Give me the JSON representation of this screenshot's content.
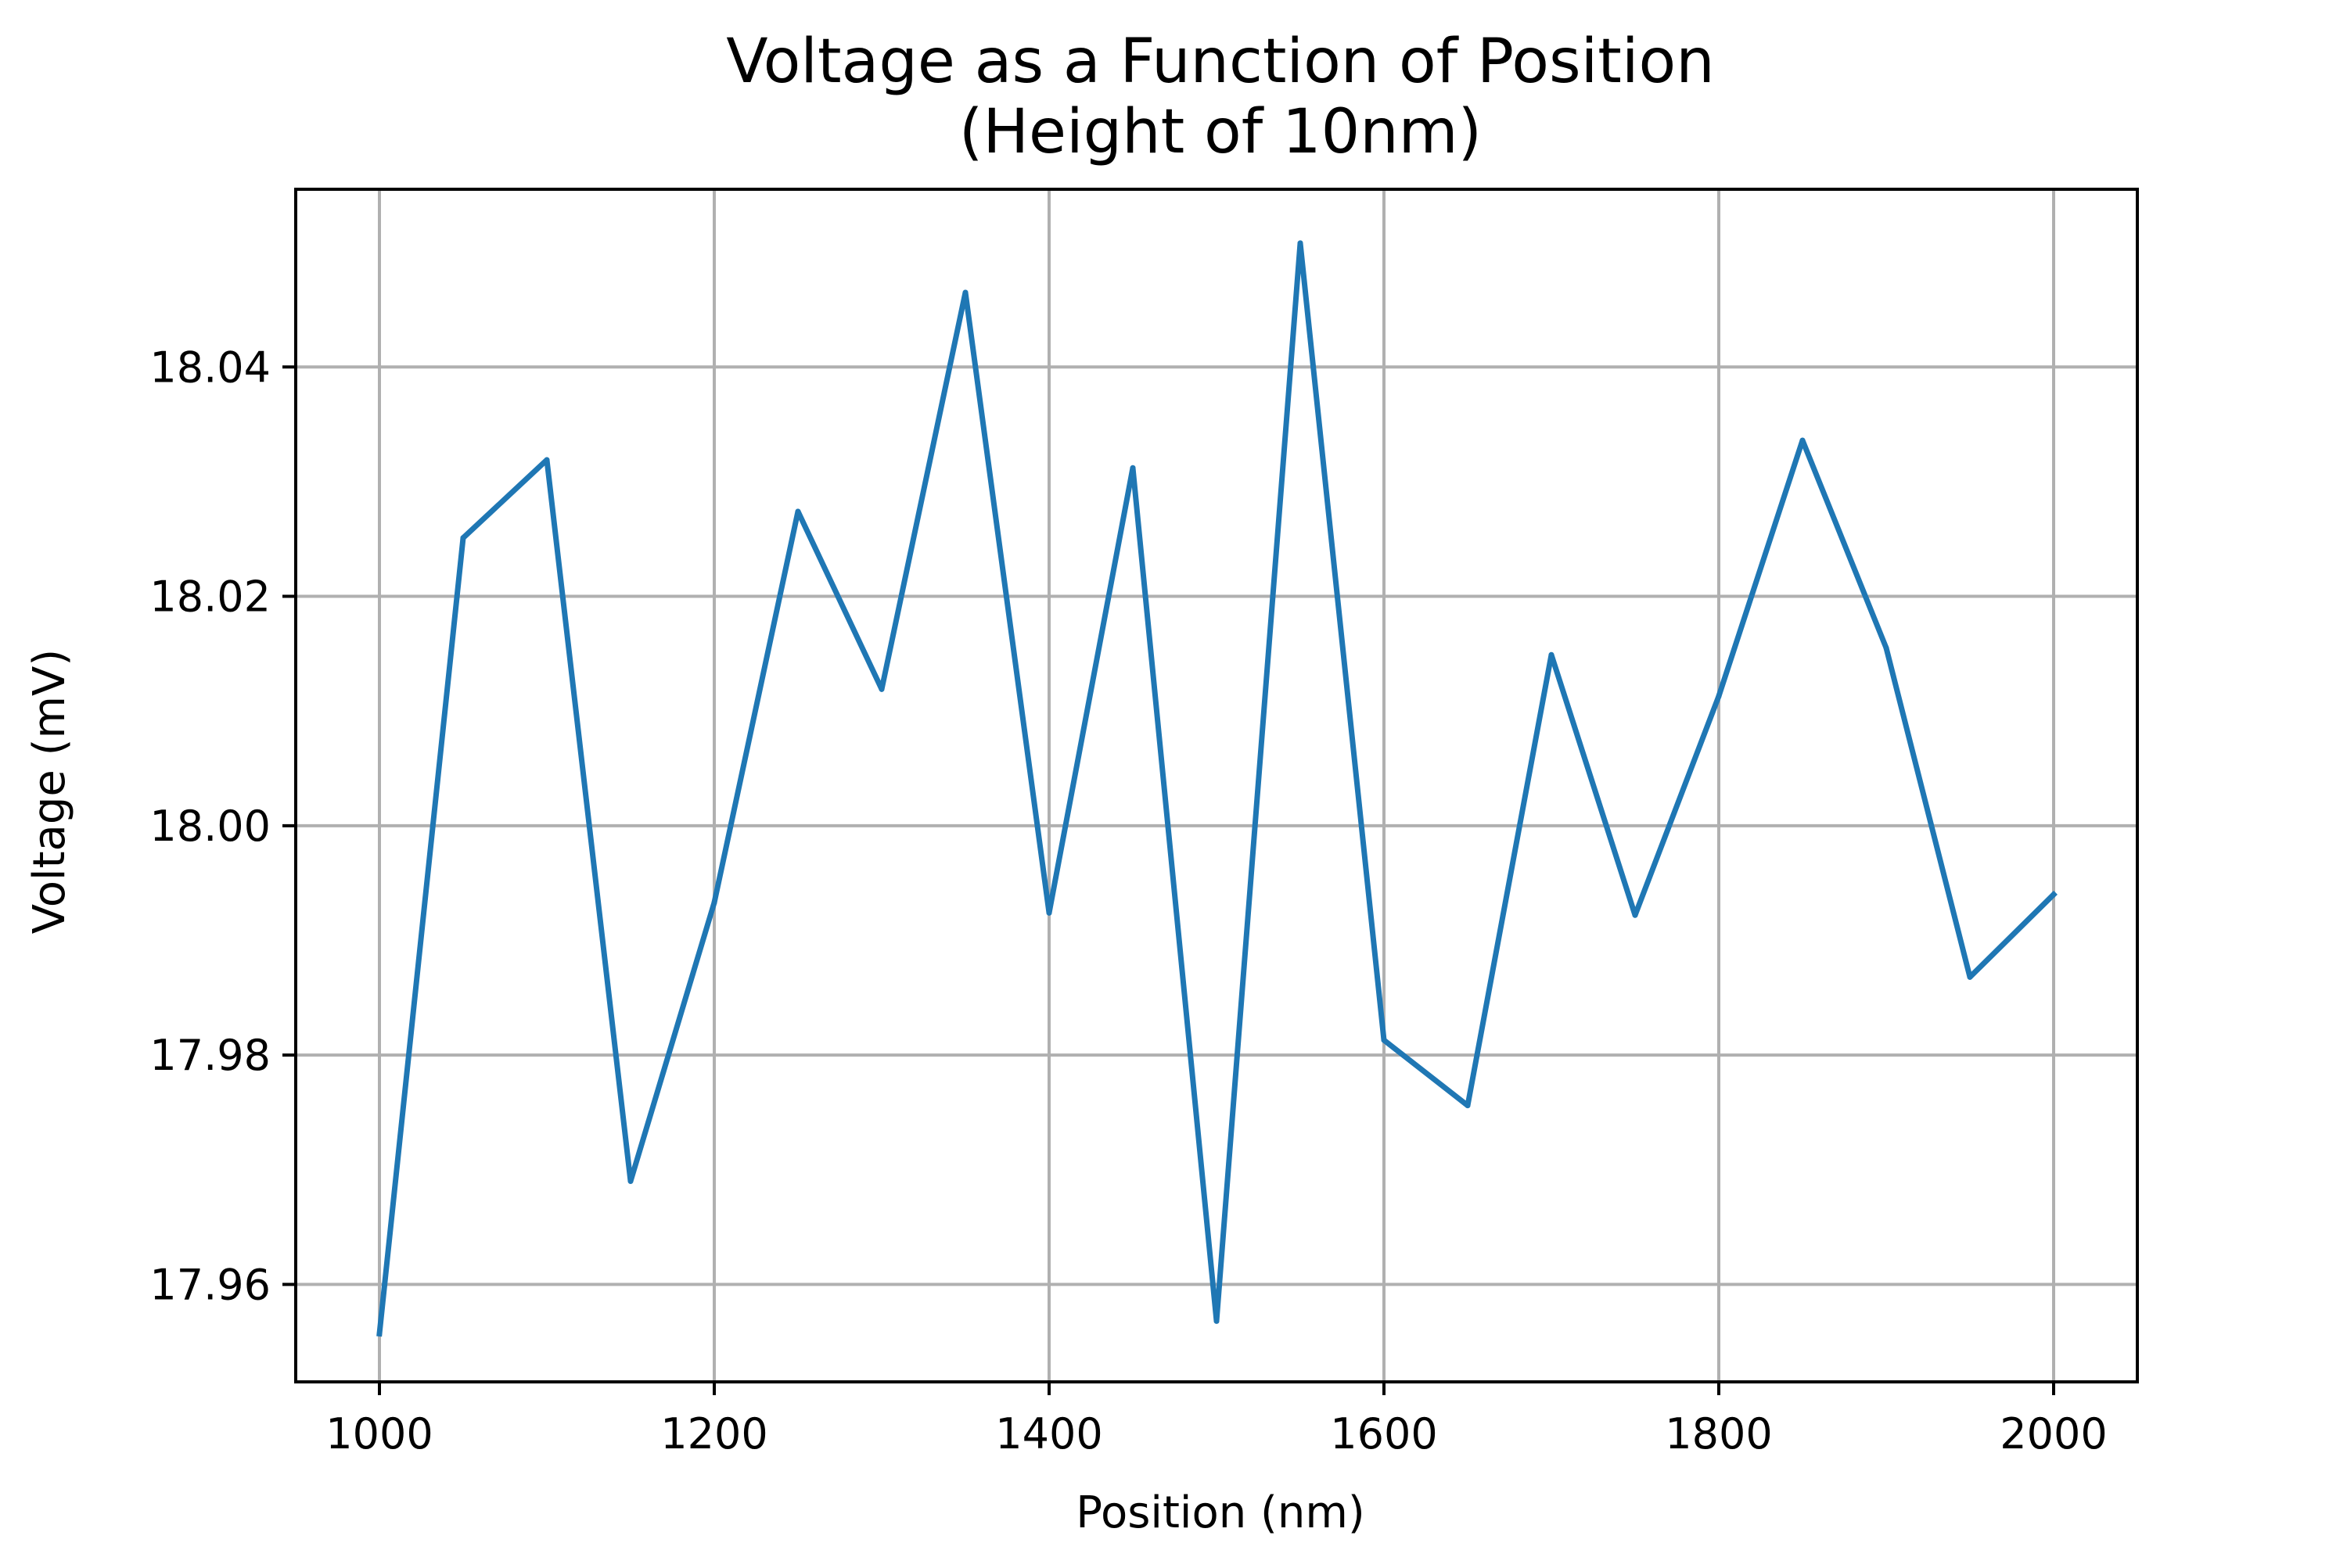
{
  "chart_data": {
    "type": "line",
    "title_line1": "Voltage as a Function of Position",
    "title_line2": "(Height of 10nm)",
    "xlabel": "Position (nm)",
    "ylabel": "Voltage (mV)",
    "xlim": [
      950,
      2050
    ],
    "ylim": [
      17.9515,
      18.0555
    ],
    "xticks": [
      1000,
      1200,
      1400,
      1600,
      1800,
      2000
    ],
    "yticks": [
      17.96,
      17.98,
      18.0,
      18.02,
      18.04
    ],
    "ytick_labels": [
      "17.96",
      "17.98",
      "18.00",
      "18.02",
      "18.04"
    ],
    "grid": true,
    "line_color": "#1f77b4",
    "x": [
      1000,
      1050,
      1100,
      1150,
      1200,
      1250,
      1300,
      1350,
      1400,
      1450,
      1500,
      1550,
      1600,
      1650,
      1700,
      1750,
      1800,
      1850,
      1900,
      1950,
      2000
    ],
    "series": [
      {
        "values": [
          17.9557,
          18.0251,
          18.0319,
          17.969,
          17.9933,
          18.0274,
          18.0119,
          18.0465,
          17.9924,
          18.0312,
          17.9568,
          18.0508,
          17.9813,
          17.9756,
          18.0149,
          17.9922,
          18.0113,
          18.0336,
          18.0155,
          17.9868,
          17.994
        ]
      }
    ]
  }
}
